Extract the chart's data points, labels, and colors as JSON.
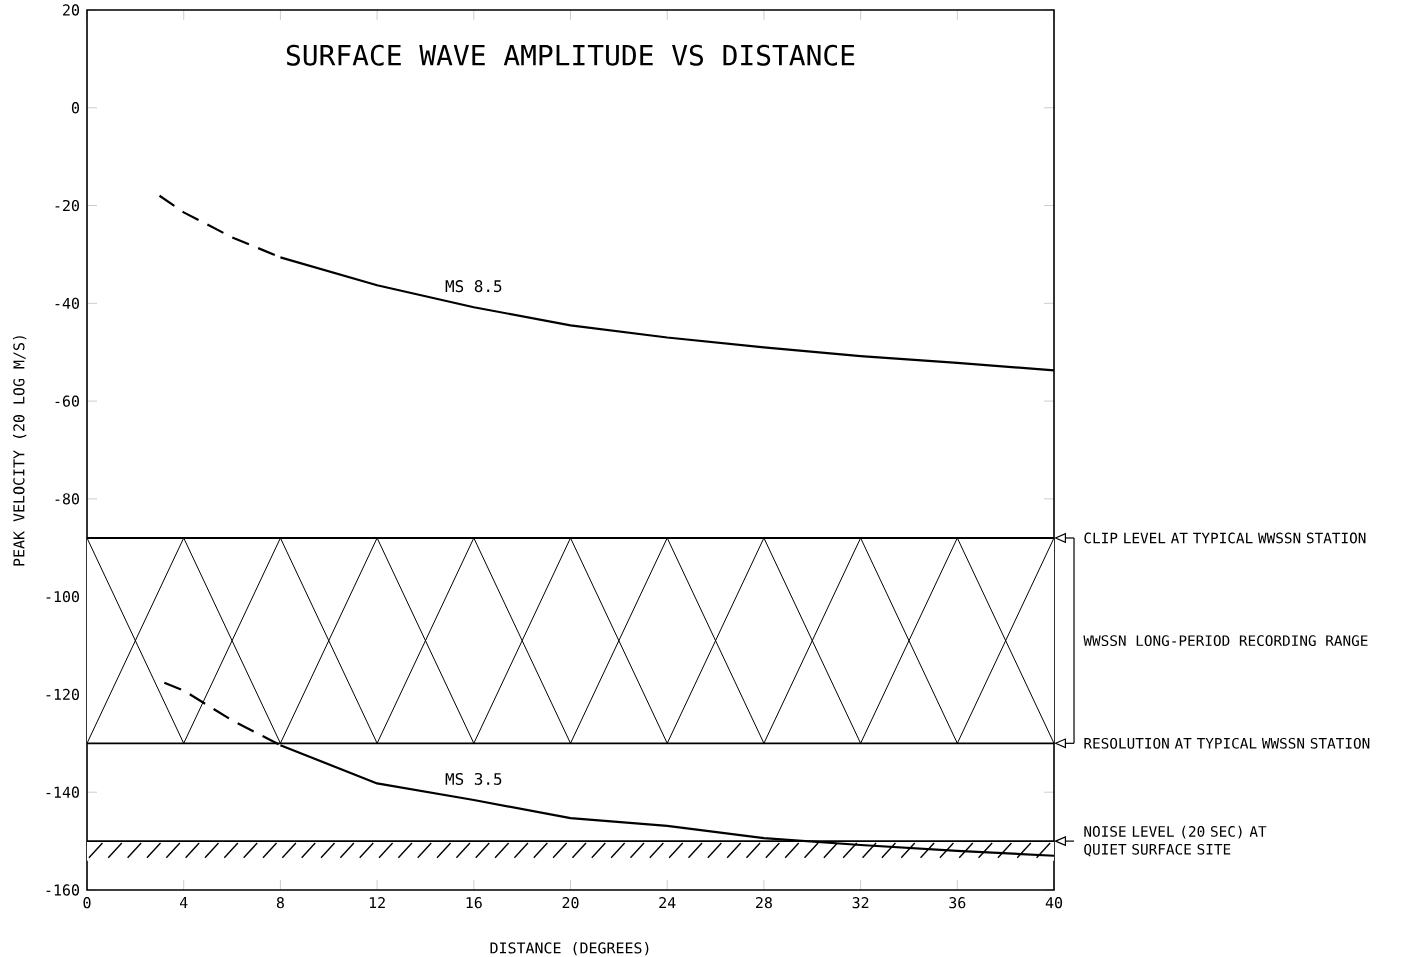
{
  "chart_data": {
    "type": "line",
    "title": "SURFACE WAVE AMPLITUDE VS DISTANCE",
    "xlabel": "DISTANCE (DEGREES)",
    "ylabel": "PEAK VELOCITY (20 LOG M/S)",
    "xlim": [
      0,
      40
    ],
    "ylim": [
      -160,
      20
    ],
    "xticks": [
      0,
      4,
      8,
      12,
      16,
      20,
      24,
      28,
      32,
      36,
      40
    ],
    "yticks": [
      -160,
      -140,
      -120,
      -100,
      -80,
      -60,
      -40,
      -20,
      0,
      20
    ],
    "grid": false,
    "series": [
      {
        "color": "#000000",
        "line_style": "dashed",
        "x": [
          3,
          4,
          6,
          8
        ],
        "values": [
          -18,
          -21.4,
          -26.5,
          -30.6
        ]
      },
      {
        "name": "MS 8.5",
        "color": "#000000",
        "line_style": "solid",
        "x": [
          8,
          12,
          16,
          20,
          24,
          28,
          32,
          36,
          40
        ],
        "values": [
          -30.6,
          -36.3,
          -40.8,
          -44.5,
          -47,
          -49,
          -50.8,
          -52.2,
          -53.7
        ]
      },
      {
        "color": "#000000",
        "line_style": "dashed",
        "x": [
          3.2,
          4,
          6,
          8
        ],
        "values": [
          -117.6,
          -119.2,
          -125.3,
          -130.4
        ]
      },
      {
        "name": "MS 3.5",
        "color": "#000000",
        "line_style": "solid",
        "x": [
          8,
          12,
          16,
          20,
          24,
          28,
          32,
          36,
          40
        ],
        "values": [
          -130.4,
          -138.2,
          -141.6,
          -145.3,
          -146.9,
          -149.4,
          -150.8,
          -152,
          -153
        ]
      }
    ],
    "ref_lines": [
      {
        "axis": "y",
        "value": -88,
        "label": "CLIP LEVEL AT TYPICAL WWSSN STATION"
      },
      {
        "axis": "y",
        "value": -130,
        "label": "RESOLUTION AT TYPICAL WWSSN STATION"
      },
      {
        "axis": "y",
        "value": -150,
        "label": "NOISE LEVEL (20 SEC) AT QUIET SURFACE SITE"
      }
    ],
    "bands": [
      {
        "axis": "y",
        "from": -130,
        "to": -88,
        "label": "WWSSN LONG-PERIOD RECORDING RANGE",
        "color": "#ffffff"
      },
      {
        "axis": "y",
        "from": -154,
        "to": -150,
        "color": "#ffffff"
      }
    ]
  }
}
